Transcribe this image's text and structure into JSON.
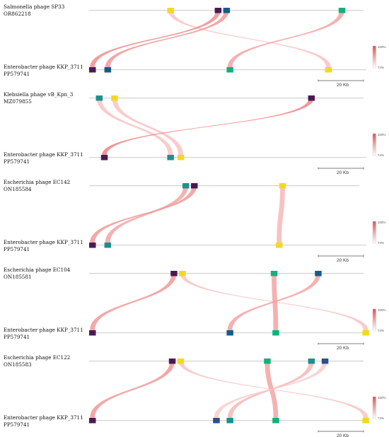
{
  "colors": {
    "purple": "#4a1a55",
    "teal": "#1d8f8f",
    "blue": "#125e88",
    "green": "#12b07a",
    "yellow": "#f4d820",
    "navy": "#2f4f86",
    "ribbon_high": "#e84d4d",
    "ribbon_low": "#fbe1e1",
    "axis": "#b8b8b8"
  },
  "legend": {
    "max_label": "100%",
    "min_label": "74%"
  },
  "scale_label": "20 Kb",
  "panels": [
    {
      "top": {
        "name": "Salmonella phage SP33",
        "accession": "OR862218",
        "genes": [
          {
            "color": "yellow",
            "kb": 23
          },
          {
            "color": "purple",
            "kb": 37
          },
          {
            "color": "blue",
            "kb": 39.5
          },
          {
            "color": "green",
            "kb": 73.5
          }
        ]
      },
      "bottom": {
        "name": "Enterobacter phage KKP_3711",
        "accession": "PP579741",
        "genes": [
          {
            "color": "purple",
            "kb": 0
          },
          {
            "color": "blue",
            "kb": 4.5
          },
          {
            "color": "green",
            "kb": 40.5
          },
          {
            "color": "yellow",
            "kb": 69.5
          }
        ]
      },
      "links": [
        {
          "from": 0,
          "to": 3,
          "identity": 80
        },
        {
          "from": 1,
          "to": 0,
          "identity": 90
        },
        {
          "from": 2,
          "to": 1,
          "identity": 88
        },
        {
          "from": 3,
          "to": 2,
          "identity": 86
        }
      ]
    },
    {
      "top": {
        "name": "Klebsiella phage vB_Kpn_3",
        "accession": "MZ079855",
        "genes": [
          {
            "color": "teal",
            "kb": 2
          },
          {
            "color": "yellow",
            "kb": 6.5
          },
          {
            "color": "purple",
            "kb": 64.5
          }
        ]
      },
      "bottom": {
        "name": "Enterobacter phage KKP_3711",
        "accession": "PP579741",
        "genes": [
          {
            "color": "purple",
            "kb": 3.5
          },
          {
            "color": "teal",
            "kb": 23
          },
          {
            "color": "yellow",
            "kb": 26
          }
        ]
      },
      "links": [
        {
          "from": 0,
          "to": 1,
          "identity": 80
        },
        {
          "from": 1,
          "to": 2,
          "identity": 80
        },
        {
          "from": 2,
          "to": 0,
          "identity": 92
        }
      ]
    },
    {
      "top": {
        "name": "Escherichia phage EC142",
        "accession": "ON185584",
        "genes": [
          {
            "color": "teal",
            "kb": 27.5
          },
          {
            "color": "purple",
            "kb": 30
          },
          {
            "color": "yellow",
            "kb": 56
          }
        ]
      },
      "bottom": {
        "name": "Enterobacter phage KKP_3711",
        "accession": "PP579741",
        "genes": [
          {
            "color": "purple",
            "kb": 0
          },
          {
            "color": "teal",
            "kb": 4.5
          },
          {
            "color": "yellow",
            "kb": 55
          }
        ]
      },
      "links": [
        {
          "from": 0,
          "to": 1,
          "identity": 86
        },
        {
          "from": 1,
          "to": 0,
          "identity": 88
        },
        {
          "from": 2,
          "to": 2,
          "identity": 82
        }
      ]
    },
    {
      "top": {
        "name": "Escherichia phage EC104",
        "accession": "ON185581",
        "genes": [
          {
            "color": "purple",
            "kb": 24
          },
          {
            "color": "yellow",
            "kb": 26.5
          },
          {
            "color": "green",
            "kb": 53.5
          },
          {
            "color": "blue",
            "kb": 66.5
          }
        ]
      },
      "bottom": {
        "name": "Enterobacter phage KKP_3711",
        "accession": "PP579741",
        "genes": [
          {
            "color": "purple",
            "kb": 0
          },
          {
            "color": "blue",
            "kb": 40.5
          },
          {
            "color": "green",
            "kb": 54
          },
          {
            "color": "yellow",
            "kb": 80.5
          }
        ]
      },
      "links": [
        {
          "from": 0,
          "to": 0,
          "identity": 88
        },
        {
          "from": 1,
          "to": 3,
          "identity": 80
        },
        {
          "from": 2,
          "to": 2,
          "identity": 86
        },
        {
          "from": 3,
          "to": 1,
          "identity": 86
        }
      ]
    },
    {
      "top": {
        "name": "Escherichia phage EC122",
        "accession": "ON185583",
        "genes": [
          {
            "color": "purple",
            "kb": 23.5
          },
          {
            "color": "yellow",
            "kb": 26
          },
          {
            "color": "green",
            "kb": 51.5
          },
          {
            "color": "teal",
            "kb": 64.5
          },
          {
            "color": "navy",
            "kb": 68.5
          }
        ]
      },
      "bottom": {
        "name": "Enterobacter phage KKP_3711",
        "accession": "PP579741",
        "genes": [
          {
            "color": "purple",
            "kb": 0
          },
          {
            "color": "navy",
            "kb": 36.5
          },
          {
            "color": "teal",
            "kb": 40.5
          },
          {
            "color": "green",
            "kb": 54
          },
          {
            "color": "yellow",
            "kb": 80.5
          }
        ]
      },
      "links": [
        {
          "from": 0,
          "to": 0,
          "identity": 88
        },
        {
          "from": 1,
          "to": 4,
          "identity": 80
        },
        {
          "from": 2,
          "to": 3,
          "identity": 86
        },
        {
          "from": 3,
          "to": 2,
          "identity": 82
        },
        {
          "from": 4,
          "to": 1,
          "identity": 78
        }
      ]
    }
  ]
}
